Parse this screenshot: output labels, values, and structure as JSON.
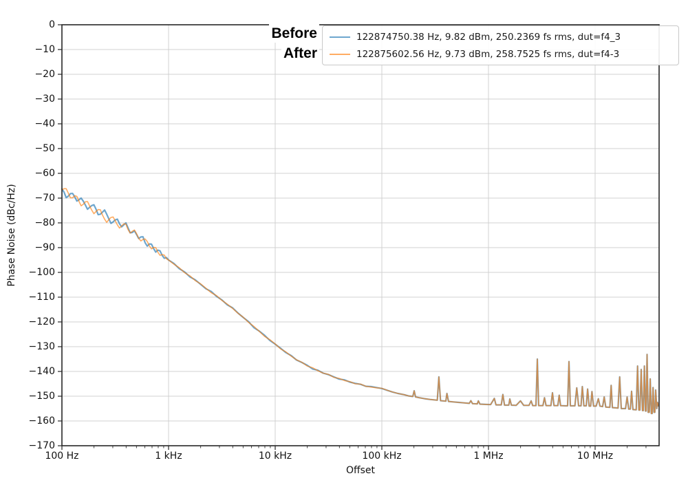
{
  "annotations": {
    "before": "Before",
    "after": "After"
  },
  "legend": {
    "entries": [
      {
        "series": "Before",
        "label": "122874750.38 Hz, 9.82 dBm, 250.2369 fs rms, dut=f4_3"
      },
      {
        "series": "After",
        "label": "122875602.56 Hz, 9.73 dBm, 258.7525 fs rms, dut=f4-3"
      }
    ]
  },
  "style": {
    "grid_color": "#d0d0d0",
    "spine_color": "#262626",
    "background": "#ffffff",
    "before_color": "#1f77b4",
    "after_color": "#ff7f0e"
  },
  "chart_data": {
    "type": "line",
    "x_scale": "log10",
    "title": "",
    "xlabel": "Offset",
    "ylabel": "Phase Noise (dBc/Hz)",
    "x_range_log10": [
      2,
      7.6
    ],
    "ylim": [
      -170,
      0
    ],
    "grid": true,
    "legend_position": "upper right",
    "x_ticks": [
      {
        "hz": 100,
        "label": "100 Hz"
      },
      {
        "hz": 1000,
        "label": "1 kHz"
      },
      {
        "hz": 10000,
        "label": "10 kHz"
      },
      {
        "hz": 100000,
        "label": "100 kHz"
      },
      {
        "hz": 1000000,
        "label": "1 MHz"
      },
      {
        "hz": 10000000,
        "label": "10 MHz"
      }
    ],
    "y_ticks": [
      {
        "value": 0,
        "label": "0"
      },
      {
        "value": -10,
        "label": "−10"
      },
      {
        "value": -20,
        "label": "−20"
      },
      {
        "value": -30,
        "label": "−30"
      },
      {
        "value": -40,
        "label": "−40"
      },
      {
        "value": -50,
        "label": "−50"
      },
      {
        "value": -60,
        "label": "−60"
      },
      {
        "value": -70,
        "label": "−70"
      },
      {
        "value": -80,
        "label": "−80"
      },
      {
        "value": -90,
        "label": "−90"
      },
      {
        "value": -100,
        "label": "−100"
      },
      {
        "value": -110,
        "label": "−110"
      },
      {
        "value": -120,
        "label": "−120"
      },
      {
        "value": -130,
        "label": "−130"
      },
      {
        "value": -140,
        "label": "−140"
      },
      {
        "value": -150,
        "label": "−150"
      },
      {
        "value": -160,
        "label": "−160"
      },
      {
        "value": -170,
        "label": "−170"
      }
    ],
    "series": [
      {
        "name": "Before",
        "color": "#1f77b4",
        "opacity": 0.65,
        "points_log10hz_dbc": [
          [
            2.0,
            -66.3
          ],
          [
            2.02,
            -67.6
          ],
          [
            2.04,
            -69.8
          ],
          [
            2.06,
            -69.2
          ],
          [
            2.08,
            -68.2
          ],
          [
            2.1,
            -68.1
          ],
          [
            2.12,
            -69.5
          ],
          [
            2.14,
            -71.2
          ],
          [
            2.16,
            -70.7
          ],
          [
            2.18,
            -70.0
          ],
          [
            2.2,
            -71.2
          ],
          [
            2.22,
            -72.8
          ],
          [
            2.24,
            -74.5
          ],
          [
            2.26,
            -73.7
          ],
          [
            2.28,
            -73.0
          ],
          [
            2.3,
            -72.7
          ],
          [
            2.32,
            -74.5
          ],
          [
            2.34,
            -76.7
          ],
          [
            2.36,
            -76.5
          ],
          [
            2.38,
            -75.7
          ],
          [
            2.4,
            -74.8
          ],
          [
            2.42,
            -76.5
          ],
          [
            2.44,
            -78.4
          ],
          [
            2.46,
            -80.2
          ],
          [
            2.48,
            -79.6
          ],
          [
            2.5,
            -78.8
          ],
          [
            2.52,
            -78.5
          ],
          [
            2.54,
            -80.4
          ],
          [
            2.56,
            -81.6
          ],
          [
            2.58,
            -80.8
          ],
          [
            2.6,
            -80.0
          ],
          [
            2.62,
            -82.0
          ],
          [
            2.64,
            -84.0
          ],
          [
            2.66,
            -83.9
          ],
          [
            2.68,
            -83.2
          ],
          [
            2.7,
            -84.7
          ],
          [
            2.72,
            -86.3
          ],
          [
            2.74,
            -85.7
          ],
          [
            2.76,
            -85.6
          ],
          [
            2.78,
            -88.0
          ],
          [
            2.8,
            -89.4
          ],
          [
            2.82,
            -88.5
          ],
          [
            2.84,
            -88.6
          ],
          [
            2.86,
            -90.4
          ],
          [
            2.88,
            -91.8
          ],
          [
            2.9,
            -91.0
          ],
          [
            2.92,
            -91.3
          ],
          [
            2.94,
            -93.1
          ],
          [
            2.96,
            -94.3
          ],
          [
            2.98,
            -94.0
          ],
          [
            3.0,
            -95.0
          ],
          [
            3.05,
            -96.4
          ],
          [
            3.1,
            -98.5
          ],
          [
            3.15,
            -99.8
          ],
          [
            3.2,
            -101.8
          ],
          [
            3.25,
            -103.0
          ],
          [
            3.3,
            -104.8
          ],
          [
            3.35,
            -106.6
          ],
          [
            3.4,
            -107.7
          ],
          [
            3.45,
            -109.7
          ],
          [
            3.5,
            -111.1
          ],
          [
            3.55,
            -113.1
          ],
          [
            3.6,
            -114.3
          ],
          [
            3.65,
            -116.4
          ],
          [
            3.7,
            -118.2
          ],
          [
            3.75,
            -119.9
          ],
          [
            3.8,
            -122.3
          ],
          [
            3.85,
            -123.7
          ],
          [
            3.9,
            -125.4
          ],
          [
            3.95,
            -127.5
          ],
          [
            4.0,
            -129.0
          ],
          [
            4.05,
            -130.6
          ],
          [
            4.1,
            -132.4
          ],
          [
            4.15,
            -133.6
          ],
          [
            4.2,
            -135.4
          ],
          [
            4.25,
            -136.4
          ],
          [
            4.3,
            -137.5
          ],
          [
            4.35,
            -139.0
          ],
          [
            4.4,
            -139.5
          ],
          [
            4.45,
            -140.7
          ],
          [
            4.5,
            -141.3
          ],
          [
            4.55,
            -142.2
          ],
          [
            4.6,
            -143.1
          ],
          [
            4.65,
            -143.4
          ],
          [
            4.7,
            -144.3
          ],
          [
            4.75,
            -144.8
          ],
          [
            4.8,
            -145.2
          ],
          [
            4.85,
            -146.0
          ],
          [
            4.9,
            -146.1
          ],
          [
            4.95,
            -146.5
          ],
          [
            5.0,
            -146.9
          ]
        ]
      },
      {
        "name": "After",
        "color": "#ff7f0e",
        "opacity": 0.65,
        "points_log10hz_dbc": [
          [
            2.0,
            -66.7
          ],
          [
            2.02,
            -66.2
          ],
          [
            2.04,
            -66.2
          ],
          [
            2.06,
            -68.0
          ],
          [
            2.08,
            -69.9
          ],
          [
            2.1,
            -69.9
          ],
          [
            2.12,
            -69.0
          ],
          [
            2.14,
            -69.3
          ],
          [
            2.16,
            -71.3
          ],
          [
            2.18,
            -73.1
          ],
          [
            2.2,
            -72.5
          ],
          [
            2.22,
            -71.5
          ],
          [
            2.24,
            -71.4
          ],
          [
            2.26,
            -73.2
          ],
          [
            2.28,
            -74.9
          ],
          [
            2.3,
            -76.3
          ],
          [
            2.32,
            -75.4
          ],
          [
            2.34,
            -74.6
          ],
          [
            2.36,
            -74.7
          ],
          [
            2.38,
            -76.8
          ],
          [
            2.4,
            -78.5
          ],
          [
            2.42,
            -79.8
          ],
          [
            2.44,
            -78.7
          ],
          [
            2.46,
            -77.8
          ],
          [
            2.48,
            -77.6
          ],
          [
            2.5,
            -79.2
          ],
          [
            2.52,
            -80.8
          ],
          [
            2.54,
            -82.1
          ],
          [
            2.56,
            -81.2
          ],
          [
            2.58,
            -80.4
          ],
          [
            2.6,
            -80.5
          ],
          [
            2.62,
            -82.7
          ],
          [
            2.64,
            -84.1
          ],
          [
            2.66,
            -83.4
          ],
          [
            2.68,
            -82.9
          ],
          [
            2.7,
            -84.4
          ],
          [
            2.72,
            -86.2
          ],
          [
            2.74,
            -87.3
          ],
          [
            2.76,
            -86.7
          ],
          [
            2.78,
            -86.5
          ],
          [
            2.8,
            -87.5
          ],
          [
            2.82,
            -89.3
          ],
          [
            2.84,
            -90.5
          ],
          [
            2.86,
            -89.9
          ],
          [
            2.88,
            -90.0
          ],
          [
            2.9,
            -91.9
          ],
          [
            2.92,
            -93.1
          ],
          [
            2.94,
            -92.8
          ],
          [
            2.96,
            -93.0
          ],
          [
            2.98,
            -94.5
          ],
          [
            3.0,
            -95.0
          ],
          [
            3.05,
            -96.7
          ],
          [
            3.1,
            -98.1
          ],
          [
            3.15,
            -100.1
          ],
          [
            3.2,
            -101.4
          ],
          [
            3.25,
            -103.3
          ],
          [
            3.3,
            -104.6
          ],
          [
            3.35,
            -106.4
          ],
          [
            3.4,
            -108.2
          ],
          [
            3.45,
            -109.4
          ],
          [
            3.5,
            -111.3
          ],
          [
            3.55,
            -112.8
          ],
          [
            3.6,
            -114.5
          ],
          [
            3.65,
            -116.5
          ],
          [
            3.7,
            -118.1
          ],
          [
            3.75,
            -120.2
          ],
          [
            3.8,
            -121.8
          ],
          [
            3.85,
            -123.8
          ],
          [
            3.9,
            -125.8
          ],
          [
            3.95,
            -127.2
          ],
          [
            4.0,
            -128.9
          ],
          [
            4.05,
            -130.9
          ],
          [
            4.1,
            -132.1
          ],
          [
            4.15,
            -133.8
          ],
          [
            4.2,
            -135.3
          ],
          [
            4.25,
            -136.3
          ],
          [
            4.3,
            -137.8
          ],
          [
            4.35,
            -138.5
          ],
          [
            4.4,
            -139.7
          ],
          [
            4.45,
            -140.7
          ],
          [
            4.5,
            -141.2
          ],
          [
            4.55,
            -142.4
          ],
          [
            4.6,
            -142.8
          ],
          [
            4.65,
            -143.7
          ],
          [
            4.7,
            -144.1
          ],
          [
            4.75,
            -145.0
          ],
          [
            4.8,
            -145.1
          ],
          [
            4.85,
            -146.0
          ],
          [
            4.9,
            -146.3
          ],
          [
            4.95,
            -146.6
          ],
          [
            5.0,
            -146.8
          ]
        ]
      }
    ],
    "shared_floor_points_log10hz_dbc": [
      [
        5.05,
        -147.6
      ],
      [
        5.1,
        -148.3
      ],
      [
        5.15,
        -148.9
      ],
      [
        5.21,
        -149.4
      ],
      [
        5.25,
        -149.9
      ],
      [
        5.29,
        -150.1
      ],
      [
        5.303,
        -147.8
      ],
      [
        5.316,
        -150.3
      ],
      [
        5.35,
        -150.6
      ],
      [
        5.4,
        -151.0
      ],
      [
        5.45,
        -151.3
      ],
      [
        5.52,
        -151.6
      ],
      [
        5.535,
        -142.2
      ],
      [
        5.55,
        -151.8
      ],
      [
        5.6,
        -152.0
      ],
      [
        5.61,
        -148.9
      ],
      [
        5.625,
        -152.1
      ],
      [
        5.67,
        -152.3
      ],
      [
        5.72,
        -152.5
      ],
      [
        5.77,
        -152.7
      ],
      [
        5.82,
        -152.9
      ],
      [
        5.835,
        -151.8
      ],
      [
        5.85,
        -153.0
      ],
      [
        5.895,
        -153.1
      ],
      [
        5.905,
        -151.9
      ],
      [
        5.92,
        -153.2
      ],
      [
        5.97,
        -153.3
      ],
      [
        6.02,
        -153.4
      ],
      [
        6.055,
        -150.9
      ],
      [
        6.07,
        -153.5
      ],
      [
        6.12,
        -153.5
      ],
      [
        6.135,
        -149.3
      ],
      [
        6.15,
        -153.6
      ],
      [
        6.19,
        -153.6
      ],
      [
        6.2,
        -151.1
      ],
      [
        6.215,
        -153.6
      ],
      [
        6.26,
        -153.7
      ],
      [
        6.3,
        -151.9
      ],
      [
        6.33,
        -153.7
      ],
      [
        6.38,
        -153.7
      ],
      [
        6.4,
        -151.9
      ],
      [
        6.415,
        -153.8
      ],
      [
        6.445,
        -153.8
      ],
      [
        6.458,
        -135.0
      ],
      [
        6.47,
        -153.8
      ],
      [
        6.51,
        -153.8
      ],
      [
        6.525,
        -150.6
      ],
      [
        6.54,
        -153.8
      ],
      [
        6.585,
        -153.8
      ],
      [
        6.6,
        -148.6
      ],
      [
        6.615,
        -153.8
      ],
      [
        6.65,
        -153.8
      ],
      [
        6.663,
        -149.6
      ],
      [
        6.676,
        -153.8
      ],
      [
        6.72,
        -153.9
      ],
      [
        6.742,
        -153.9
      ],
      [
        6.755,
        -136.0
      ],
      [
        6.768,
        -153.9
      ],
      [
        6.81,
        -153.9
      ],
      [
        6.828,
        -146.6
      ],
      [
        6.845,
        -153.9
      ],
      [
        6.868,
        -153.9
      ],
      [
        6.88,
        -146.1
      ],
      [
        6.895,
        -153.9
      ],
      [
        6.917,
        -153.9
      ],
      [
        6.93,
        -147.1
      ],
      [
        6.944,
        -154.0
      ],
      [
        6.958,
        -154.0
      ],
      [
        6.97,
        -148.1
      ],
      [
        6.985,
        -154.0
      ],
      [
        7.01,
        -154.0
      ],
      [
        7.03,
        -151.0
      ],
      [
        7.045,
        -154.0
      ],
      [
        7.07,
        -154.2
      ],
      [
        7.085,
        -150.3
      ],
      [
        7.1,
        -154.4
      ],
      [
        7.138,
        -154.5
      ],
      [
        7.15,
        -145.6
      ],
      [
        7.162,
        -154.6
      ],
      [
        7.19,
        -154.7
      ],
      [
        7.215,
        -154.8
      ],
      [
        7.23,
        -142.2
      ],
      [
        7.245,
        -155.0
      ],
      [
        7.285,
        -155.0
      ],
      [
        7.3,
        -150.3
      ],
      [
        7.315,
        -155.2
      ],
      [
        7.33,
        -155.2
      ],
      [
        7.342,
        -148.0
      ],
      [
        7.355,
        -155.4
      ],
      [
        7.385,
        -155.5
      ],
      [
        7.398,
        -137.8
      ],
      [
        7.41,
        -155.6
      ],
      [
        7.42,
        -155.6
      ],
      [
        7.432,
        -139.2
      ],
      [
        7.444,
        -155.8
      ],
      [
        7.452,
        -155.8
      ],
      [
        7.462,
        -137.8
      ],
      [
        7.472,
        -156.0
      ],
      [
        7.478,
        -156.0
      ],
      [
        7.487,
        -133.1
      ],
      [
        7.497,
        -156.5
      ],
      [
        7.508,
        -156.5
      ],
      [
        7.517,
        -143.0
      ],
      [
        7.527,
        -157.0
      ],
      [
        7.535,
        -157.0
      ],
      [
        7.543,
        -146.5
      ],
      [
        7.552,
        -156.5
      ],
      [
        7.56,
        -156.5
      ],
      [
        7.568,
        -147.5
      ],
      [
        7.578,
        -155.0
      ],
      [
        7.585,
        -152.5
      ],
      [
        7.595,
        -154.0
      ]
    ]
  }
}
